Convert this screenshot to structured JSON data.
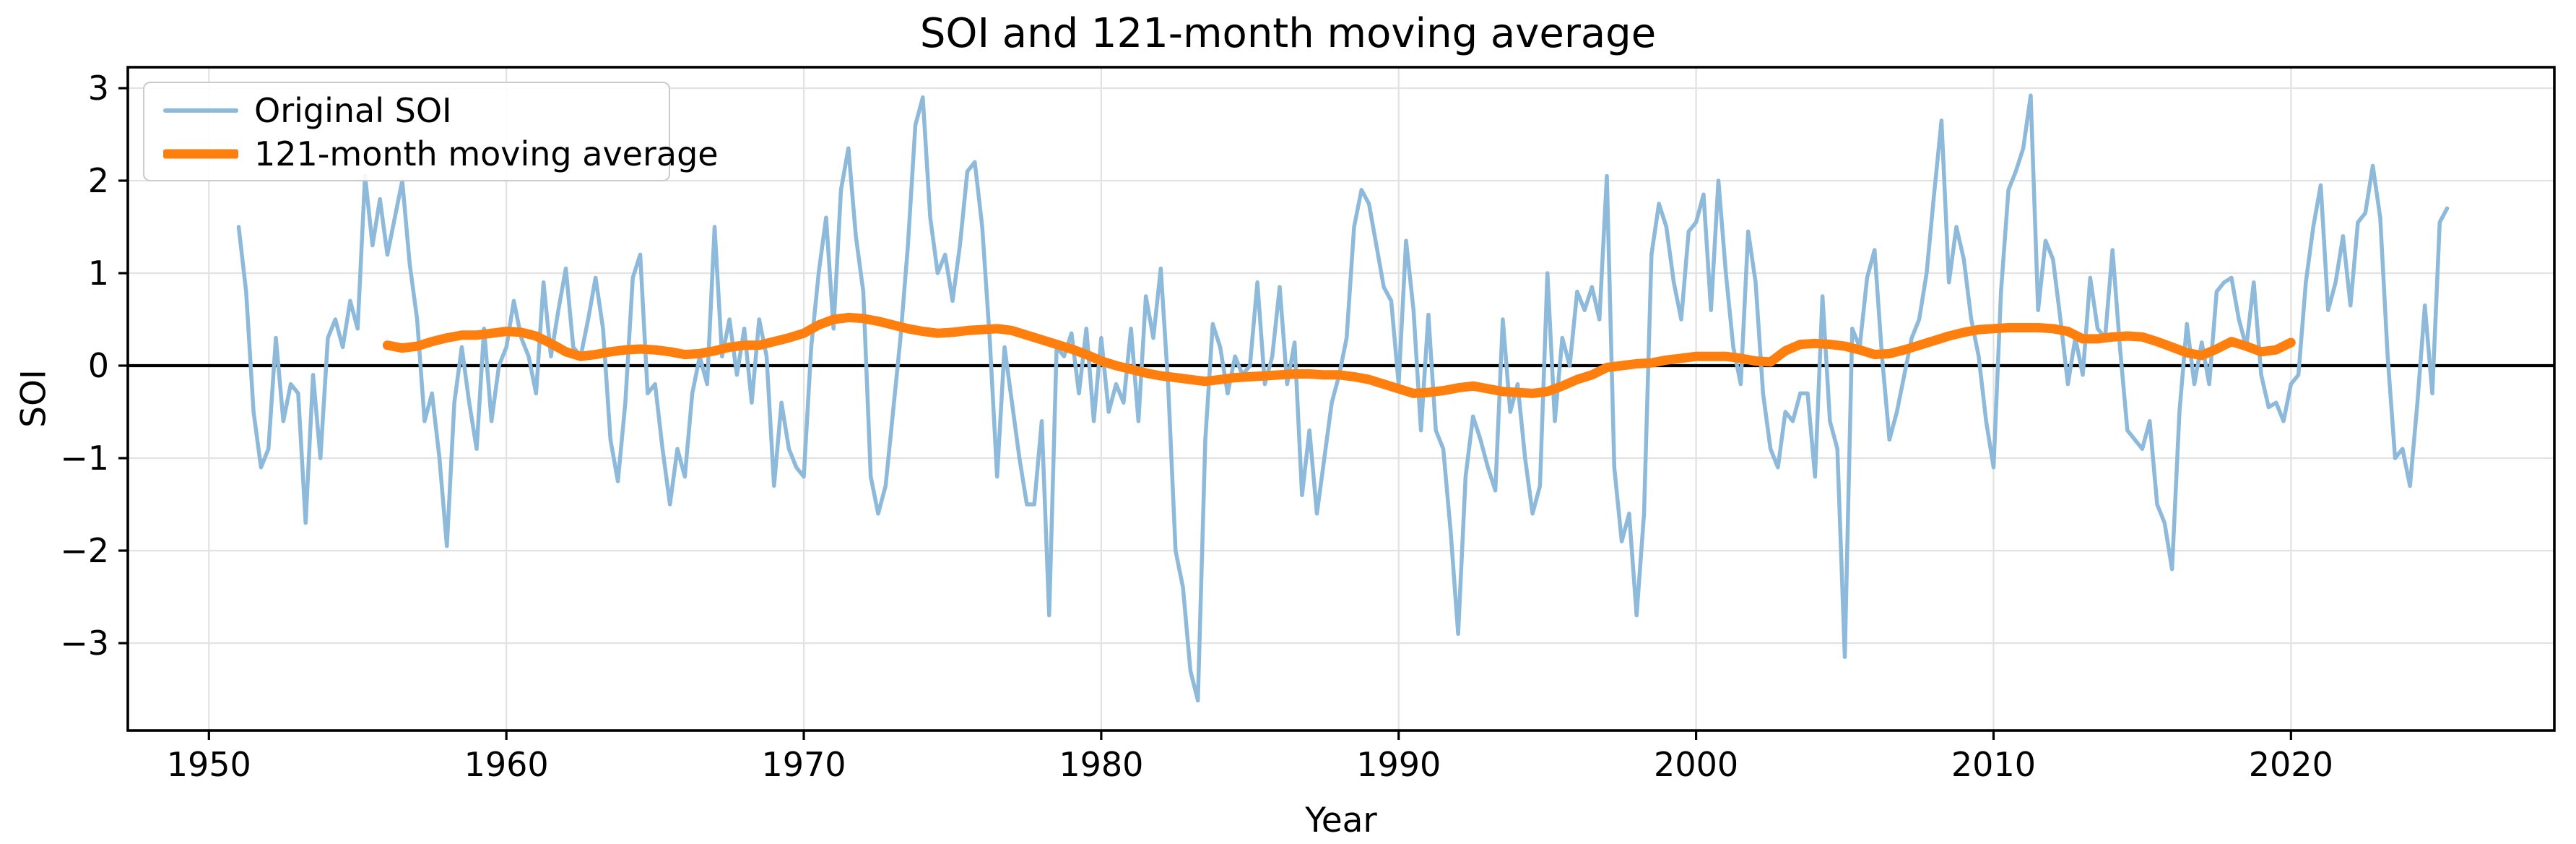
{
  "title": "SOI and 121-month moving average",
  "x_axis_label": "Year",
  "y_axis_label": "SOI",
  "legend": [
    {
      "label": "Original SOI",
      "color": "#8db9da",
      "thickness": 6
    },
    {
      "label": "121-month moving average",
      "color": "#ff7f0e",
      "thickness": 13
    }
  ],
  "colors": {
    "original_series": "#8db9da",
    "moving_average": "#ff7f0e",
    "zero_line": "#000000",
    "grid": "#e2e2e2",
    "spine": "#000000",
    "tick_label": "#000000",
    "legend_border": "#cbcbcb"
  },
  "chart_data": {
    "type": "line",
    "title": "SOI and 121-month moving average",
    "xlabel": "Year",
    "ylabel": "SOI",
    "grid": true,
    "legend_position": "upper left",
    "x_tick_labels": [
      1950,
      1960,
      1970,
      1980,
      1990,
      2000,
      2010,
      2020
    ],
    "y_tick_labels": [
      3,
      2,
      1,
      0,
      -1,
      -2,
      -3
    ],
    "xlim": [
      1947.3,
      2028.9
    ],
    "ylim": [
      -3.95,
      3.23
    ],
    "zero_line": true,
    "series": [
      {
        "name": "Original SOI",
        "x_start": 1951.0,
        "x_step": 0.25,
        "values": [
          1.5,
          0.8,
          -0.5,
          -1.1,
          -0.9,
          0.3,
          -0.6,
          -0.2,
          -0.3,
          -1.7,
          -0.1,
          -1.0,
          0.3,
          0.5,
          0.2,
          0.7,
          0.4,
          2.05,
          1.3,
          1.8,
          1.2,
          1.6,
          2.0,
          1.1,
          0.5,
          -0.6,
          -0.3,
          -1.0,
          -1.95,
          -0.4,
          0.2,
          -0.4,
          -0.9,
          0.4,
          -0.6,
          0.0,
          0.2,
          0.7,
          0.3,
          0.1,
          -0.3,
          0.9,
          0.1,
          0.6,
          1.05,
          0.2,
          0.1,
          0.5,
          0.95,
          0.4,
          -0.8,
          -1.25,
          -0.4,
          0.95,
          1.2,
          -0.3,
          -0.2,
          -0.9,
          -1.5,
          -0.9,
          -1.2,
          -0.3,
          0.1,
          -0.2,
          1.5,
          0.1,
          0.5,
          -0.1,
          0.4,
          -0.4,
          0.5,
          0.1,
          -1.3,
          -0.4,
          -0.9,
          -1.1,
          -1.2,
          0.2,
          1.0,
          1.6,
          0.4,
          1.9,
          2.35,
          1.4,
          0.8,
          -1.2,
          -1.6,
          -1.3,
          -0.5,
          0.3,
          1.3,
          2.6,
          2.9,
          1.6,
          1.0,
          1.2,
          0.7,
          1.3,
          2.1,
          2.2,
          1.5,
          0.3,
          -1.2,
          0.2,
          -0.4,
          -1.0,
          -1.5,
          -1.5,
          -0.6,
          -2.7,
          0.2,
          0.1,
          0.35,
          -0.3,
          0.4,
          -0.6,
          0.3,
          -0.5,
          -0.2,
          -0.4,
          0.4,
          -0.6,
          0.75,
          0.3,
          1.05,
          -0.2,
          -2.0,
          -2.4,
          -3.3,
          -3.62,
          -0.8,
          0.45,
          0.2,
          -0.3,
          0.1,
          -0.1,
          0.0,
          0.9,
          -0.2,
          0.1,
          0.85,
          -0.2,
          0.25,
          -1.4,
          -0.7,
          -1.6,
          -1.0,
          -0.4,
          -0.1,
          0.3,
          1.5,
          1.9,
          1.75,
          1.3,
          0.85,
          0.7,
          -0.2,
          1.35,
          0.6,
          -0.7,
          0.55,
          -0.7,
          -0.9,
          -1.8,
          -2.9,
          -1.2,
          -0.55,
          -0.8,
          -1.1,
          -1.35,
          0.5,
          -0.5,
          -0.2,
          -1.0,
          -1.6,
          -1.3,
          1.0,
          -0.6,
          0.3,
          0.0,
          0.8,
          0.6,
          0.85,
          0.5,
          2.05,
          -1.1,
          -1.9,
          -1.6,
          -2.7,
          -1.6,
          1.2,
          1.75,
          1.5,
          0.9,
          0.5,
          1.45,
          1.55,
          1.85,
          0.6,
          2.0,
          1.0,
          0.2,
          -0.2,
          1.45,
          0.9,
          -0.3,
          -0.9,
          -1.1,
          -0.5,
          -0.6,
          -0.3,
          -0.3,
          -1.2,
          0.75,
          -0.6,
          -0.9,
          -3.15,
          0.4,
          0.2,
          0.95,
          1.25,
          0.1,
          -0.8,
          -0.5,
          -0.1,
          0.3,
          0.5,
          1.0,
          1.85,
          2.65,
          0.9,
          1.5,
          1.15,
          0.5,
          0.1,
          -0.6,
          -1.1,
          0.8,
          1.9,
          2.1,
          2.35,
          2.92,
          0.6,
          1.35,
          1.15,
          0.5,
          -0.2,
          0.3,
          -0.1,
          0.95,
          0.4,
          0.3,
          1.25,
          0.2,
          -0.7,
          -0.8,
          -0.9,
          -0.6,
          -1.5,
          -1.7,
          -2.2,
          -0.5,
          0.45,
          -0.2,
          0.25,
          -0.2,
          0.8,
          0.9,
          0.95,
          0.5,
          0.2,
          0.9,
          -0.1,
          -0.45,
          -0.4,
          -0.6,
          -0.2,
          -0.1,
          0.9,
          1.5,
          1.95,
          0.6,
          0.9,
          1.4,
          0.65,
          1.55,
          1.65,
          2.16,
          1.6,
          0.1,
          -1.0,
          -0.9,
          -1.3,
          -0.4,
          0.65,
          -0.3,
          1.55,
          1.7
        ]
      },
      {
        "name": "121-month moving average",
        "x_start": 1956.0,
        "x_step": 0.5,
        "values": [
          0.22,
          0.19,
          0.21,
          0.26,
          0.3,
          0.33,
          0.33,
          0.35,
          0.37,
          0.36,
          0.32,
          0.24,
          0.15,
          0.1,
          0.12,
          0.15,
          0.17,
          0.18,
          0.17,
          0.15,
          0.12,
          0.13,
          0.16,
          0.2,
          0.22,
          0.22,
          0.26,
          0.3,
          0.35,
          0.44,
          0.5,
          0.52,
          0.51,
          0.48,
          0.44,
          0.4,
          0.37,
          0.35,
          0.36,
          0.38,
          0.39,
          0.4,
          0.38,
          0.33,
          0.28,
          0.23,
          0.18,
          0.12,
          0.05,
          0.0,
          -0.04,
          -0.08,
          -0.11,
          -0.13,
          -0.15,
          -0.17,
          -0.15,
          -0.13,
          -0.12,
          -0.11,
          -0.1,
          -0.09,
          -0.09,
          -0.1,
          -0.1,
          -0.12,
          -0.15,
          -0.2,
          -0.25,
          -0.3,
          -0.29,
          -0.27,
          -0.24,
          -0.22,
          -0.25,
          -0.28,
          -0.29,
          -0.3,
          -0.28,
          -0.22,
          -0.15,
          -0.1,
          -0.02,
          0.0,
          0.02,
          0.03,
          0.06,
          0.08,
          0.1,
          0.1,
          0.1,
          0.08,
          0.05,
          0.04,
          0.16,
          0.23,
          0.24,
          0.23,
          0.21,
          0.17,
          0.12,
          0.13,
          0.17,
          0.22,
          0.27,
          0.32,
          0.36,
          0.39,
          0.4,
          0.41,
          0.41,
          0.41,
          0.4,
          0.37,
          0.29,
          0.29,
          0.31,
          0.32,
          0.31,
          0.26,
          0.2,
          0.14,
          0.11,
          0.18,
          0.26,
          0.21,
          0.15,
          0.17,
          0.25
        ]
      }
    ]
  }
}
